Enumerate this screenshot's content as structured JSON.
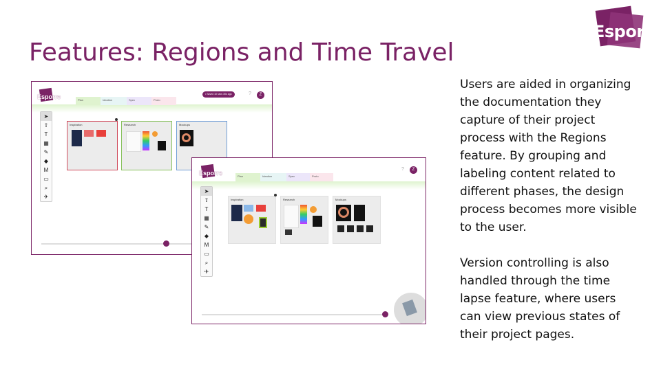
{
  "slide": {
    "title": "Features: Regions and Time Travel",
    "paragraphs": [
      "Users are aided in organizing the documentation they capture of their project process with the Regions feature. By grouping and labeling content related to different phases, the design process becomes more visible to the user.",
      "Version controlling is also handled through the time lapse feature, where users can view previous states of their project pages."
    ]
  },
  "logo": {
    "text": "Esporre"
  },
  "app": {
    "logo_text": "Esporre",
    "tabs": [
      "Plan",
      "Ideation",
      "Spec",
      "Proto"
    ],
    "help": "?",
    "avatar": "Z",
    "status_pill": "• Saved 10 secs 30s ago",
    "tools": [
      "pointer-icon",
      "upload-icon",
      "text-icon",
      "layout-icon",
      "pen-icon",
      "shapes-icon",
      "markdown-icon",
      "comment-icon",
      "zoom-icon",
      "send-icon"
    ],
    "tool_glyphs": [
      "➤",
      "⇧",
      "T",
      "▦",
      "✎",
      "◆",
      "M",
      "▭",
      "⌕",
      "✈"
    ],
    "regions": [
      "Inspiration",
      "Research",
      "Mockups"
    ]
  },
  "colors": {
    "brand": "#7a2265",
    "region_inspiration": "#d0495a",
    "region_research": "#86c05b",
    "region_mockups": "#6f9dd6"
  }
}
